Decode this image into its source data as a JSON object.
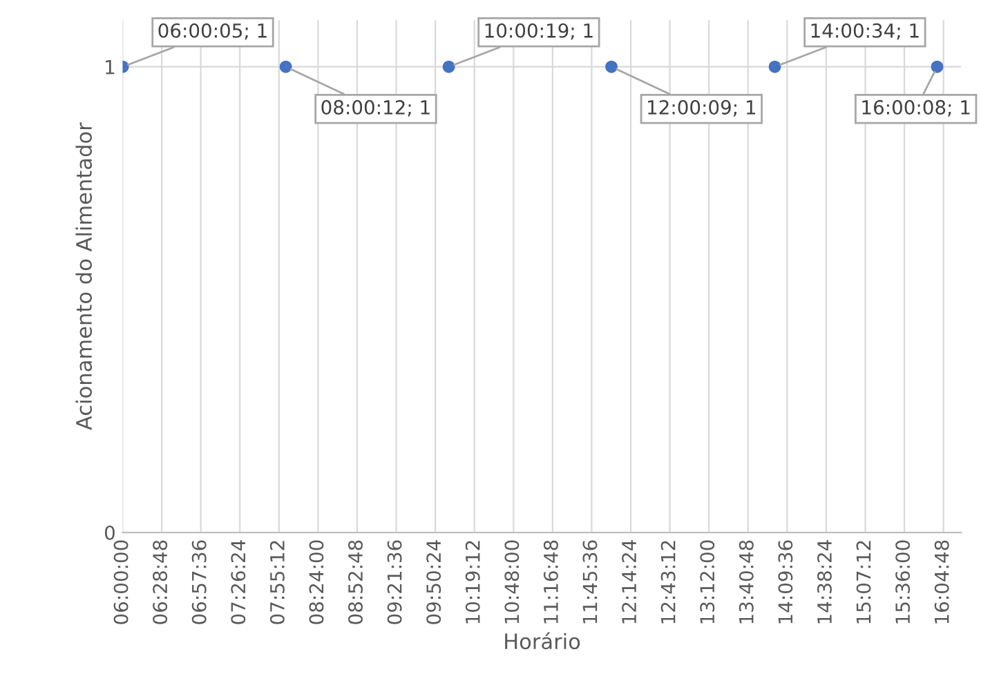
{
  "chart_data": {
    "type": "scatter",
    "xlabel": "Horário",
    "ylabel": "Acionamento do Alimentador",
    "x": [
      6.0014,
      8.0033,
      10.0053,
      12.0025,
      14.0094,
      16.0022
    ],
    "values": [
      1,
      1,
      1,
      1,
      1,
      1
    ],
    "value_labels": [
      "06:00:05; 1",
      "08:00:12; 1",
      "10:00:19; 1",
      "12:00:09; 1",
      "14:00:34; 1",
      "16:00:08; 1"
    ],
    "color": "#4472c4",
    "marker": "circle",
    "xlim": [
      6.0,
      16.3
    ],
    "xticks": [
      {
        "value": 6.0,
        "label": "06:00:00"
      },
      {
        "value": 6.48,
        "label": "06:28:48"
      },
      {
        "value": 6.96,
        "label": "06:57:36"
      },
      {
        "value": 7.44,
        "label": "07:26:24"
      },
      {
        "value": 7.92,
        "label": "07:55:12"
      },
      {
        "value": 8.4,
        "label": "08:24:00"
      },
      {
        "value": 8.88,
        "label": "08:52:48"
      },
      {
        "value": 9.36,
        "label": "09:21:36"
      },
      {
        "value": 9.84,
        "label": "09:50:24"
      },
      {
        "value": 10.32,
        "label": "10:19:12"
      },
      {
        "value": 10.8,
        "label": "10:48:00"
      },
      {
        "value": 11.28,
        "label": "11:16:48"
      },
      {
        "value": 11.76,
        "label": "11:45:36"
      },
      {
        "value": 12.24,
        "label": "12:14:24"
      },
      {
        "value": 12.72,
        "label": "12:43:12"
      },
      {
        "value": 13.2,
        "label": "13:12:00"
      },
      {
        "value": 13.68,
        "label": "13:40:48"
      },
      {
        "value": 14.16,
        "label": "14:09:36"
      },
      {
        "value": 14.64,
        "label": "14:38:24"
      },
      {
        "value": 15.12,
        "label": "15:07:12"
      },
      {
        "value": 15.6,
        "label": "15:36:00"
      },
      {
        "value": 16.08,
        "label": "16:04:48"
      }
    ],
    "ylim": [
      0,
      1.1
    ],
    "yticks": [
      0,
      1
    ],
    "grid": true
  }
}
